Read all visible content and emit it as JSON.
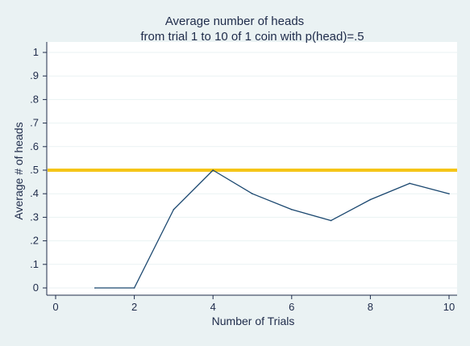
{
  "chart_data": {
    "type": "line",
    "title": "Average number of heads",
    "subtitle": "from trial 1 to 10 of 1 coin with p(head)=.5",
    "xlabel": "Number of Trials",
    "ylabel": "Average # of heads",
    "xlim": [
      0,
      10
    ],
    "ylim": [
      0,
      1
    ],
    "x_ticks": [
      "0",
      "2",
      "4",
      "6",
      "8",
      "10"
    ],
    "y_ticks": [
      "0",
      ".1",
      ".2",
      ".3",
      ".4",
      ".5",
      ".6",
      ".7",
      ".8",
      ".9",
      "1"
    ],
    "grid": "horizontal",
    "series": [
      {
        "x": [
          1,
          2,
          3,
          4,
          5,
          6,
          7,
          8,
          9,
          10
        ],
        "values": [
          0,
          0,
          0.333,
          0.5,
          0.4,
          0.333,
          0.286,
          0.375,
          0.444,
          0.4
        ],
        "color": "#1a476f"
      }
    ],
    "reference_line": {
      "y": 0.5,
      "color": "#f5c518"
    },
    "colors": {
      "background": "#eaf2f3",
      "plot_background": "#ffffff",
      "grid": "#eaf2f3"
    }
  }
}
